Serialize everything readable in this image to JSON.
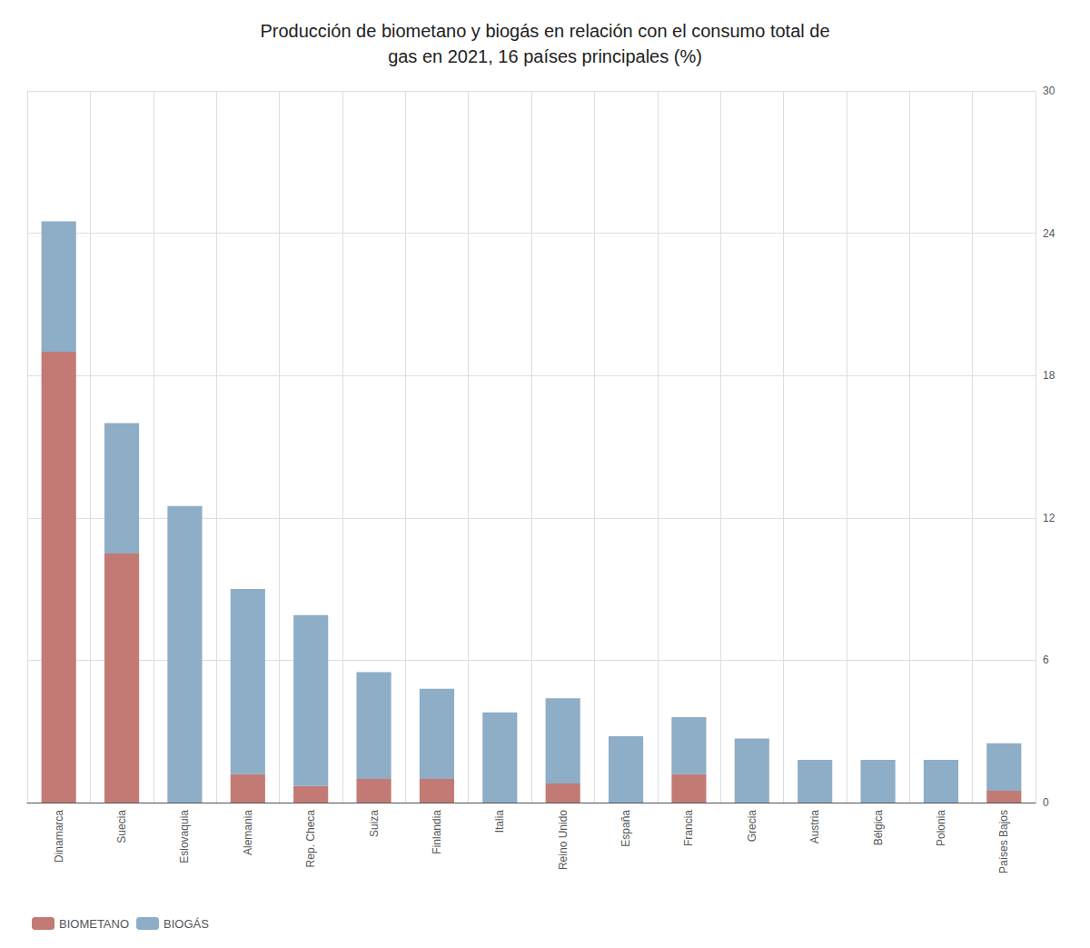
{
  "chart_data": {
    "type": "bar",
    "title": "Producción de biometano y biogás en relación con el consumo total de\ngas en 2021, 16 países principales (%)",
    "categories": [
      "Dinamarca",
      "Suecia",
      "Eslovaquia",
      "Alemania",
      "Rep. Checa",
      "Suiza",
      "Finlandia",
      "Italia",
      "Reino Unido",
      "España",
      "Francia",
      "Grecia",
      "Austria",
      "Bélgica",
      "Polonia",
      "Países Bajos"
    ],
    "series": [
      {
        "name": "BIOMETANO",
        "color": "#c47a74",
        "values": [
          19.0,
          10.5,
          0.0,
          1.2,
          0.7,
          1.0,
          1.0,
          0.0,
          0.8,
          0.0,
          1.2,
          0.0,
          0.0,
          0.0,
          0.0,
          0.5
        ]
      },
      {
        "name": "BIOGÁS",
        "color": "#8eadc7",
        "values": [
          5.5,
          5.5,
          12.5,
          7.8,
          7.2,
          4.5,
          3.8,
          3.8,
          3.6,
          2.8,
          2.4,
          2.7,
          1.8,
          1.8,
          1.8,
          2.0
        ]
      }
    ],
    "stacked": true,
    "ylim": [
      0,
      30
    ],
    "yticks": [
      0,
      6,
      12,
      18,
      24,
      30
    ],
    "grid": true,
    "legend": "bottom-left"
  }
}
